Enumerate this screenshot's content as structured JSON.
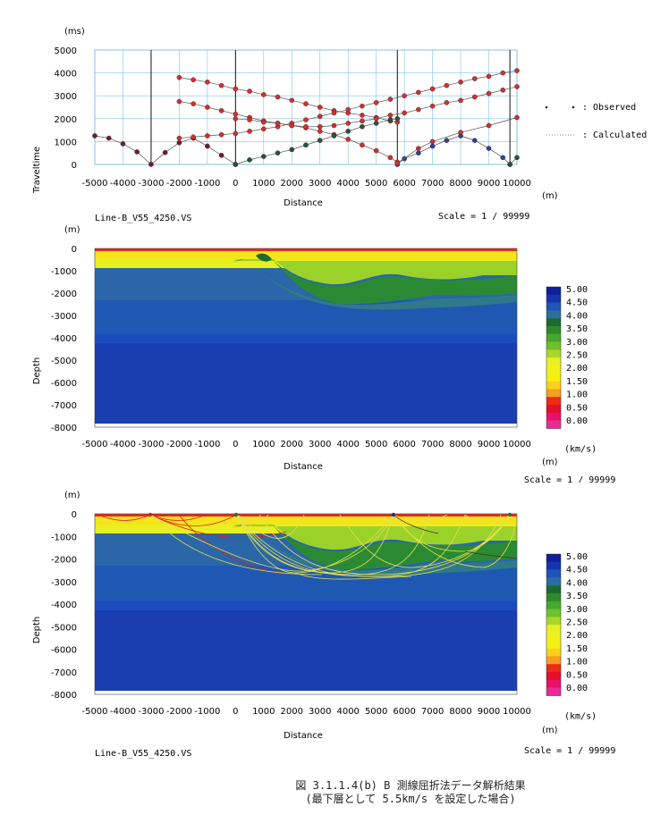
{
  "traveltime_chart": {
    "type": "scatter",
    "y_unit": "(ms)",
    "x_unit": "(m)",
    "ylabel": "Traveltime",
    "xlabel": "Distance",
    "xlim": [
      -5000,
      10000
    ],
    "ylim": [
      0,
      5000
    ],
    "x_ticks": [
      -5000,
      -4000,
      -3000,
      -2000,
      -1000,
      0,
      1000,
      2000,
      3000,
      4000,
      5000,
      6000,
      7000,
      8000,
      9000,
      10000
    ],
    "y_ticks": [
      0,
      1000,
      2000,
      3000,
      4000,
      5000
    ],
    "grid": true,
    "shot_positions": [
      -3000,
      0,
      5750,
      9750
    ],
    "legend": {
      "observed": ": Observed",
      "calculated": ": Calculated"
    },
    "series": [
      {
        "color": "#6a1f3a",
        "points": [
          [
            -5000,
            1250
          ],
          [
            -4500,
            1150
          ],
          [
            -4000,
            900
          ],
          [
            -3500,
            550
          ],
          [
            -3000,
            0
          ],
          [
            -2500,
            520
          ],
          [
            -2000,
            950
          ],
          [
            -1500,
            1150
          ],
          [
            -1000,
            800
          ],
          [
            -500,
            400
          ],
          [
            0,
            0
          ]
        ]
      },
      {
        "color": "#cc3333",
        "points": [
          [
            -2000,
            3800
          ],
          [
            -1500,
            3700
          ],
          [
            -1000,
            3600
          ],
          [
            -500,
            3450
          ],
          [
            0,
            3300
          ],
          [
            500,
            3200
          ],
          [
            1000,
            3050
          ],
          [
            1500,
            2950
          ],
          [
            2000,
            2800
          ],
          [
            2500,
            2650
          ],
          [
            3000,
            2500
          ],
          [
            3500,
            2350
          ],
          [
            4000,
            2250
          ],
          [
            4500,
            2150
          ],
          [
            5000,
            2050
          ],
          [
            5500,
            1900
          ],
          [
            5750,
            1850
          ]
        ]
      },
      {
        "color": "#cc3333",
        "points": [
          [
            -2000,
            2750
          ],
          [
            -1500,
            2650
          ],
          [
            -1000,
            2500
          ],
          [
            -500,
            2350
          ],
          [
            0,
            2200
          ],
          [
            500,
            2050
          ],
          [
            1000,
            1900
          ],
          [
            1500,
            1800
          ],
          [
            2000,
            1700
          ],
          [
            2500,
            1600
          ],
          [
            3000,
            1450
          ],
          [
            3500,
            1300
          ],
          [
            4000,
            1100
          ],
          [
            4500,
            850
          ],
          [
            5000,
            600
          ],
          [
            5500,
            300
          ],
          [
            5750,
            100
          ]
        ]
      },
      {
        "color": "#cc3333",
        "points": [
          [
            -2000,
            1150
          ],
          [
            -1500,
            1200
          ],
          [
            -1000,
            1250
          ],
          [
            -500,
            1300
          ],
          [
            0,
            1350
          ],
          [
            500,
            1450
          ],
          [
            1000,
            1550
          ],
          [
            1500,
            1650
          ],
          [
            2000,
            1800
          ],
          [
            2500,
            1950
          ],
          [
            3000,
            2100
          ],
          [
            3500,
            2250
          ],
          [
            4000,
            2400
          ],
          [
            4500,
            2550
          ],
          [
            5000,
            2700
          ],
          [
            5500,
            2850
          ],
          [
            6000,
            3000
          ],
          [
            6500,
            3150
          ],
          [
            7000,
            3300
          ],
          [
            7500,
            3450
          ],
          [
            8000,
            3600
          ],
          [
            8500,
            3750
          ],
          [
            9000,
            3850
          ],
          [
            9500,
            4000
          ],
          [
            10000,
            4100
          ]
        ]
      },
      {
        "color": "#cc3333",
        "points": [
          [
            0,
            2000
          ],
          [
            500,
            1950
          ],
          [
            1000,
            1850
          ],
          [
            1500,
            1800
          ],
          [
            2000,
            1700
          ],
          [
            2500,
            1650
          ],
          [
            3000,
            1650
          ],
          [
            3500,
            1700
          ],
          [
            4000,
            1800
          ],
          [
            4500,
            1900
          ],
          [
            5000,
            2000
          ],
          [
            5500,
            2150
          ],
          [
            6000,
            2250
          ],
          [
            6500,
            2400
          ],
          [
            7000,
            2550
          ],
          [
            7500,
            2700
          ],
          [
            8000,
            2800
          ],
          [
            8500,
            2950
          ],
          [
            9000,
            3100
          ],
          [
            9500,
            3250
          ],
          [
            10000,
            3400
          ]
        ]
      },
      {
        "color": "#1f5a3a",
        "points": [
          [
            0,
            0
          ],
          [
            500,
            200
          ],
          [
            1000,
            350
          ],
          [
            1500,
            500
          ],
          [
            2000,
            650
          ],
          [
            2500,
            850
          ],
          [
            3000,
            1050
          ],
          [
            3500,
            1250
          ],
          [
            4000,
            1450
          ],
          [
            4500,
            1650
          ],
          [
            5000,
            1800
          ],
          [
            5500,
            1950
          ],
          [
            5750,
            2000
          ]
        ]
      },
      {
        "color": "#1f4aa0",
        "points": [
          [
            5750,
            0
          ],
          [
            6000,
            250
          ],
          [
            6500,
            500
          ],
          [
            7000,
            800
          ],
          [
            7500,
            1050
          ],
          [
            8000,
            1250
          ],
          [
            8500,
            1050
          ],
          [
            9000,
            700
          ],
          [
            9500,
            300
          ],
          [
            9750,
            0
          ]
        ]
      },
      {
        "color": "#cc3333",
        "points": [
          [
            5750,
            50
          ],
          [
            6500,
            700
          ],
          [
            7000,
            1000
          ],
          [
            8000,
            1400
          ],
          [
            9000,
            1700
          ],
          [
            10000,
            2050
          ]
        ]
      },
      {
        "color": "#1f5a3a",
        "points": [
          [
            9750,
            0
          ],
          [
            10000,
            300
          ]
        ]
      }
    ]
  },
  "velocity_section_1": {
    "type": "heatmap",
    "y_unit": "(m)",
    "x_unit": "(m)",
    "ylabel": "Depth",
    "xlabel": "Distance",
    "line_name": "Line-B_V55_4250.VS",
    "scale": "Scale = 1 / 99999",
    "xlim": [
      -5000,
      10000
    ],
    "ylim": [
      -8000,
      0
    ],
    "x_ticks": [
      -5000,
      -4000,
      -3000,
      -2000,
      -1000,
      0,
      1000,
      2000,
      3000,
      4000,
      5000,
      6000,
      7000,
      8000,
      9000,
      10000
    ],
    "y_ticks": [
      0,
      -1000,
      -2000,
      -3000,
      -4000,
      -5000,
      -6000,
      -7000,
      -8000
    ]
  },
  "velocity_section_2": {
    "type": "heatmap",
    "y_unit": "(m)",
    "x_unit": "(m)",
    "ylabel": "Depth",
    "xlabel": "Distance",
    "line_name": "Line-B_V55_4250.VS",
    "scale": "Scale = 1 / 99999",
    "xlim": [
      -5000,
      10000
    ],
    "ylim": [
      -8000,
      0
    ],
    "x_ticks": [
      -5000,
      -4000,
      -3000,
      -2000,
      -1000,
      0,
      1000,
      2000,
      3000,
      4000,
      5000,
      6000,
      7000,
      8000,
      9000,
      10000
    ],
    "y_ticks": [
      0,
      -1000,
      -2000,
      -3000,
      -4000,
      -5000,
      -6000,
      -7000,
      -8000
    ]
  },
  "colorbar": {
    "unit": "(km/s)",
    "labels": [
      "5.00",
      "4.50",
      "4.00",
      "3.50",
      "3.00",
      "2.50",
      "2.00",
      "1.50",
      "1.00",
      "0.50",
      "0.00"
    ],
    "colors": [
      "#10209a",
      "#1535b0",
      "#1f55b8",
      "#2b6fa0",
      "#1d6a2e",
      "#2f8a2a",
      "#46a82d",
      "#6fc12a",
      "#a8d82a",
      "#e9f022",
      "#f2f01a",
      "#f6f012",
      "#fcd01a",
      "#f5a020",
      "#ee2a18",
      "#e80d2a",
      "#e8106a",
      "#ec2a96"
    ]
  },
  "caption": {
    "line1": "図 3.1.1.4(b)  B 測線屈折法データ解析結果",
    "line2": "(最下層として 5.5km/s を設定した場合)"
  }
}
